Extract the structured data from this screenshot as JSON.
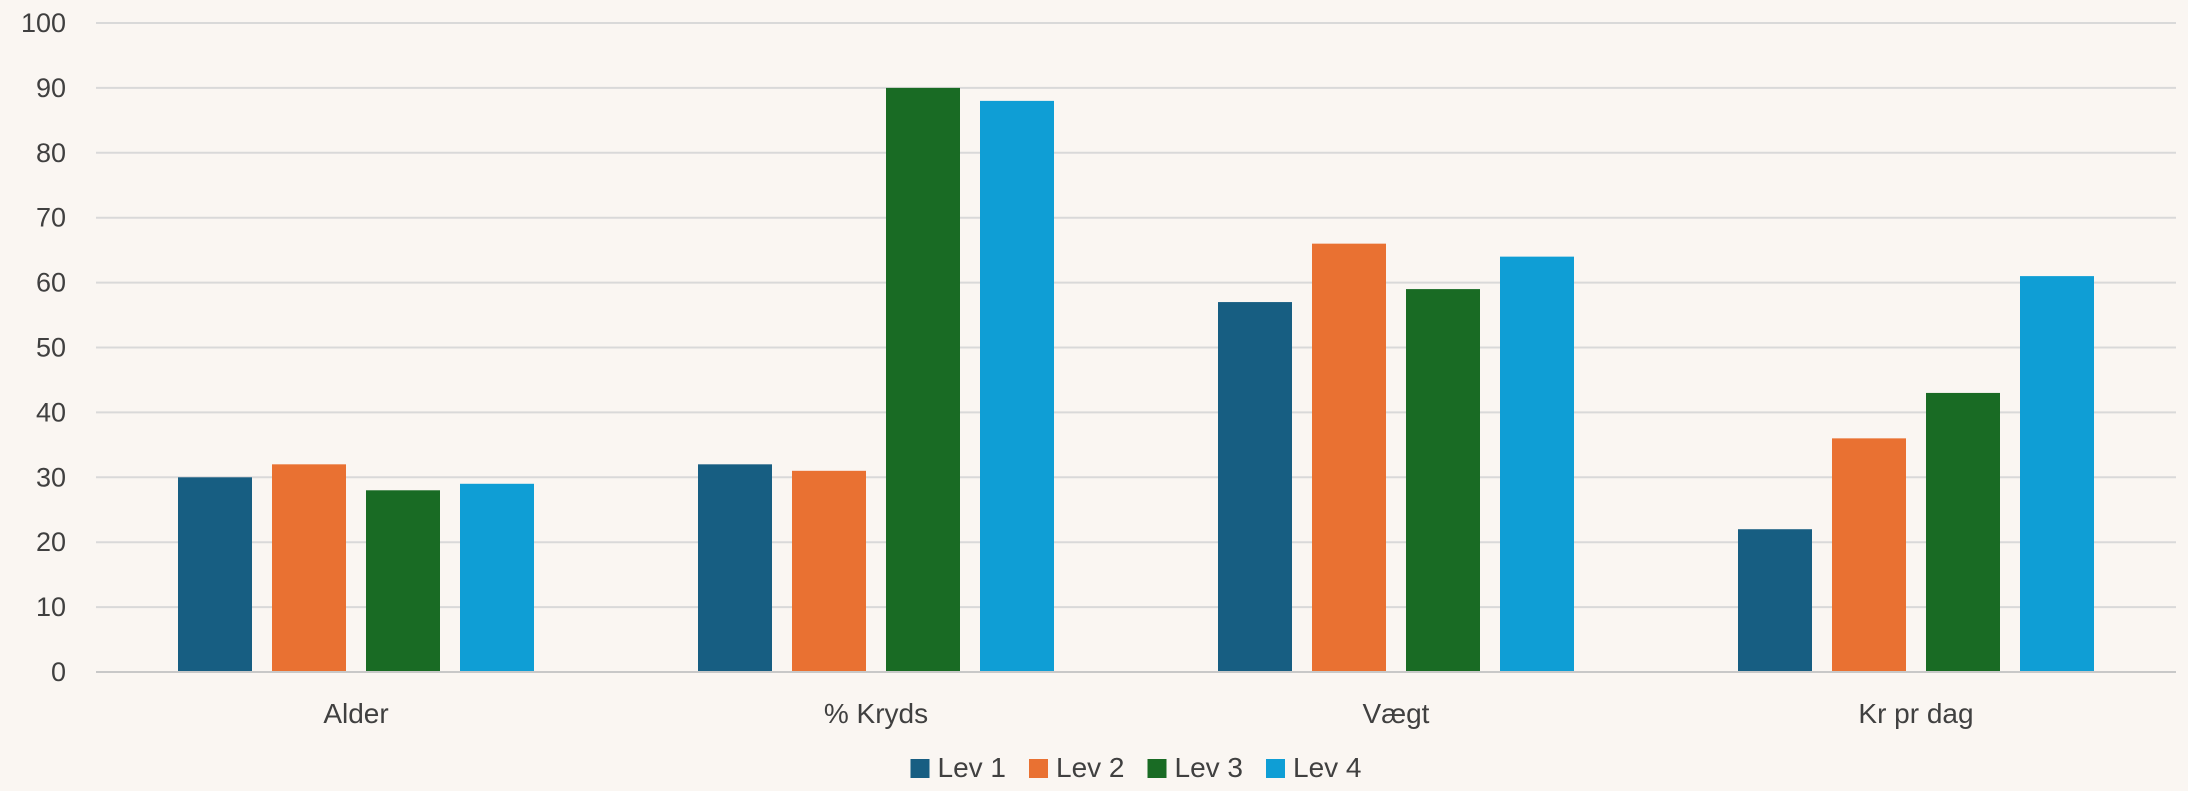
{
  "chart_data": {
    "type": "bar",
    "title": "",
    "xlabel": "",
    "ylabel": "",
    "categories": [
      "Alder",
      "% Kryds",
      "Vægt",
      "Kr pr dag"
    ],
    "series": [
      {
        "name": "Lev 1",
        "color": "#175e82",
        "values": [
          30,
          32,
          57,
          22
        ]
      },
      {
        "name": "Lev 2",
        "color": "#e97132",
        "values": [
          32,
          31,
          66,
          36
        ]
      },
      {
        "name": "Lev 3",
        "color": "#196b24",
        "values": [
          28,
          90,
          59,
          43
        ]
      },
      {
        "name": "Lev 4",
        "color": "#0f9ed5",
        "values": [
          29,
          88,
          64,
          61
        ]
      }
    ],
    "ylim": [
      0,
      100
    ],
    "yticks": [
      0,
      10,
      20,
      30,
      40,
      50,
      60,
      70,
      80,
      90,
      100
    ],
    "grid": true,
    "legend_position": "bottom"
  }
}
